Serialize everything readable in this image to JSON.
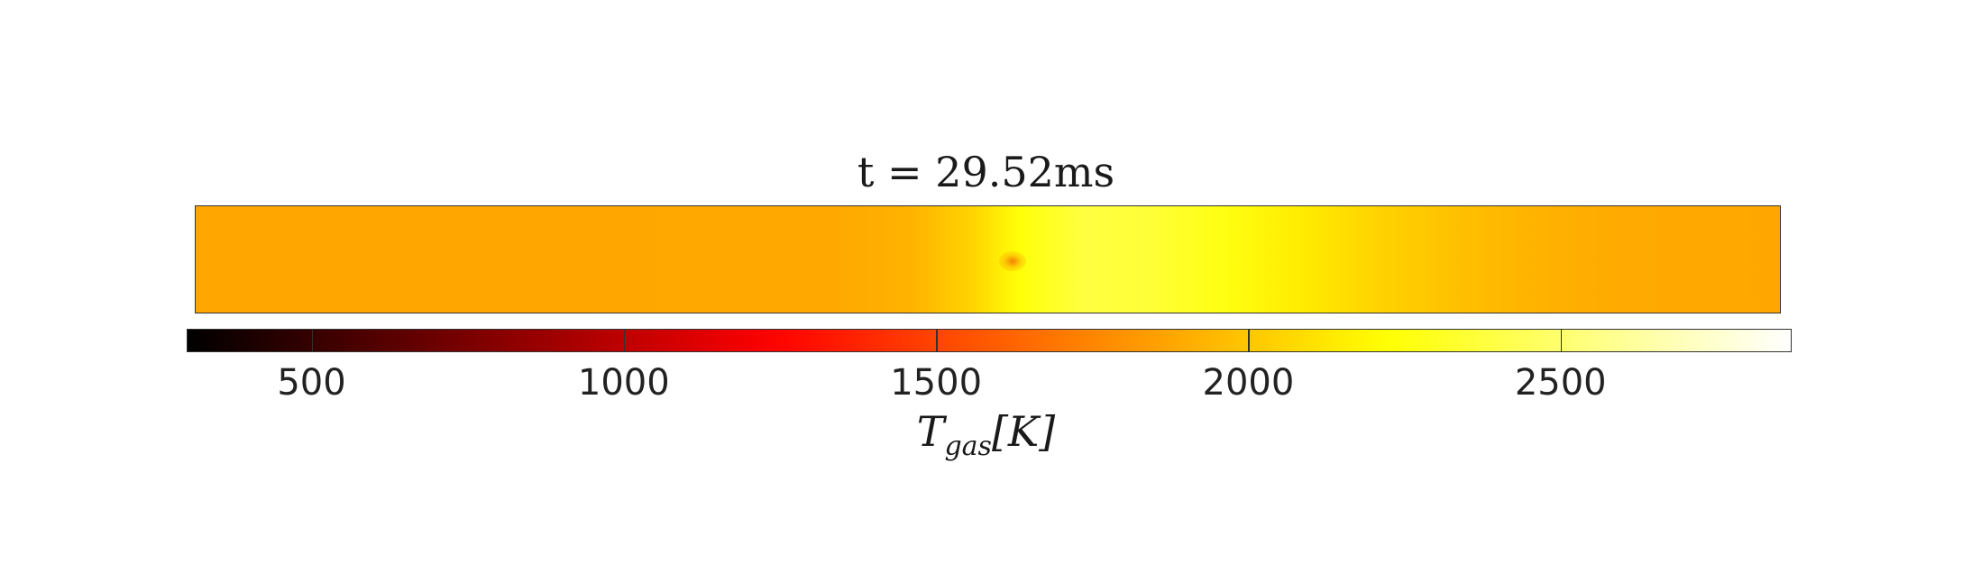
{
  "chart_data": {
    "type": "heatmap",
    "title": "t = 29.52ms",
    "colormap": "hot",
    "colorbar": {
      "label": "T_gas[K]",
      "label_display": "Tgas[K]",
      "range": [
        300,
        2870
      ],
      "ticks": [
        500,
        1000,
        1500,
        2000,
        2500
      ],
      "tick_labels": [
        "500",
        "1000",
        "1500",
        "2000",
        "2500"
      ],
      "location": "bottom"
    },
    "field": {
      "description_free": false,
      "x": [
        0.0,
        0.2,
        0.4,
        0.45,
        0.49,
        0.52,
        0.56,
        0.6,
        0.65,
        0.7,
        0.75,
        0.8,
        0.85,
        0.9,
        1.0
      ],
      "temperature_K": [
        1880,
        1880,
        1885,
        1920,
        2050,
        2240,
        2380,
        2360,
        2260,
        2140,
        2040,
        1970,
        1920,
        1890,
        1880
      ],
      "hotspot": {
        "x": 0.51,
        "temperature_K": 1800
      }
    }
  }
}
